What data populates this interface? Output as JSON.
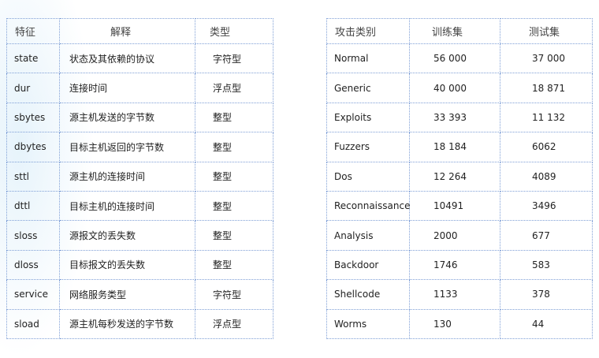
{
  "features_table": {
    "headers": [
      "特征",
      "解释",
      "类型"
    ],
    "rows": [
      [
        "state",
        "状态及其依赖的协议",
        "字符型"
      ],
      [
        "dur",
        "连接时间",
        "浮点型"
      ],
      [
        "sbytes",
        "源主机发送的字节数",
        "整型"
      ],
      [
        "dbytes",
        "目标主机返回的字节数",
        "整型"
      ],
      [
        "sttl",
        "源主机的连接时间",
        "整型"
      ],
      [
        "dttl",
        "目标主机的连接时间",
        "整型"
      ],
      [
        "sloss",
        "源报文的丢失数",
        "整型"
      ],
      [
        "dloss",
        "目标报文的丢失数",
        "整型"
      ],
      [
        "service",
        "网络服务类型",
        "字符型"
      ],
      [
        "sload",
        "源主机每秒发送的字节数",
        "浮点型"
      ]
    ]
  },
  "attack_table": {
    "headers": [
      "攻击类别",
      "训练集",
      "测试集"
    ],
    "rows": [
      [
        "Normal",
        "56 000",
        "37 000"
      ],
      [
        "Generic",
        "40 000",
        "18 871"
      ],
      [
        "Exploits",
        "33 393",
        "11 132"
      ],
      [
        "Fuzzers",
        "18 184",
        "6062"
      ],
      [
        "Dos",
        "12 264",
        "4089"
      ],
      [
        "Reconnaissance",
        "10491",
        "3496"
      ],
      [
        "Analysis",
        "2000",
        "677"
      ],
      [
        "Backdoor",
        "1746",
        "583"
      ],
      [
        "Shellcode",
        "1133",
        "378"
      ],
      [
        "Worms",
        "130",
        "44"
      ]
    ]
  }
}
